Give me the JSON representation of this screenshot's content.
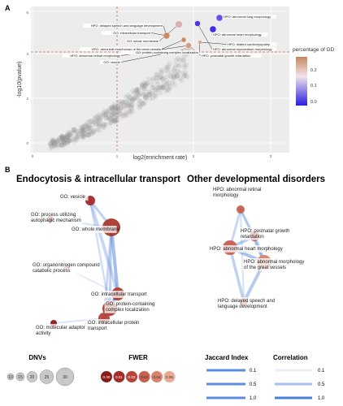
{
  "panel_a": {
    "label": "A",
    "xlabel": "log2(enrichment rate)",
    "ylabel": "-log10(pvalue)",
    "y_ticks": [
      "6",
      "4",
      "2",
      "0"
    ],
    "x_ticks": [
      "0",
      "1",
      "2",
      "3"
    ],
    "legend_title": "percentage of GD",
    "legend_ticks": [
      "0.2",
      "0.1",
      "0.0"
    ],
    "annotations": [
      "HPO: delayed speech and language development",
      "GO: intracellular transport",
      "GO: whole membrane",
      "HPO: abnormal morphology of the great vessels",
      "HPO: abnormal retinal morphology",
      "HPO: postnatal growth retardation",
      "HPO: abnormal lung morphology",
      "GO: vesicle",
      "HPO: abnormal heart morphology",
      "GO: protein-containing complex localization",
      "HPO: dilated cardiomyopathy",
      "HPO: abnormal myocardium morphology"
    ]
  },
  "panel_b": {
    "label": "B",
    "title_left": "Endocytosis & intracellular transport",
    "title_right": "Other developmental disorders",
    "nodes_left": [
      "GO: vesicle",
      "GO: process utilizing autophagic mechanism",
      "GO: whole membrane",
      "GO: organonitrogen compound catabolic process",
      "GO: intracellular transport",
      "GO: protein-containing complex localization",
      "GO: intracellular protein transport",
      "GO: molecular adaptor activity"
    ],
    "nodes_right": [
      "HPO: abnormal retinal morphology",
      "HPO: postnatal growth retardation",
      "HPO: abnormal heart morphology",
      "HPO: abnormal morphology of the great vessels",
      "HPO: delayed speech and language development"
    ]
  },
  "legend": {
    "dnvs_title": "DNVs",
    "dnvs_values": [
      "10",
      "15",
      "20",
      "25",
      "30"
    ],
    "fwer_title": "FWER",
    "fwer_values": [
      "0.00",
      "0.01",
      "0.02",
      "0.03",
      "0.04",
      "0.05"
    ],
    "fwer_colors": [
      "#8b1a1a",
      "#a52a2a",
      "#b8433a",
      "#c86050",
      "#d8846c",
      "#e8aa92"
    ],
    "jaccard_title": "Jaccard Index",
    "jaccard_values": [
      "0.1",
      "0.5",
      "1.0"
    ],
    "correlation_title": "Correlation",
    "correlation_values": [
      "0.1",
      "0.5",
      "1.0"
    ],
    "edge_color": "#4a7fd8"
  }
}
